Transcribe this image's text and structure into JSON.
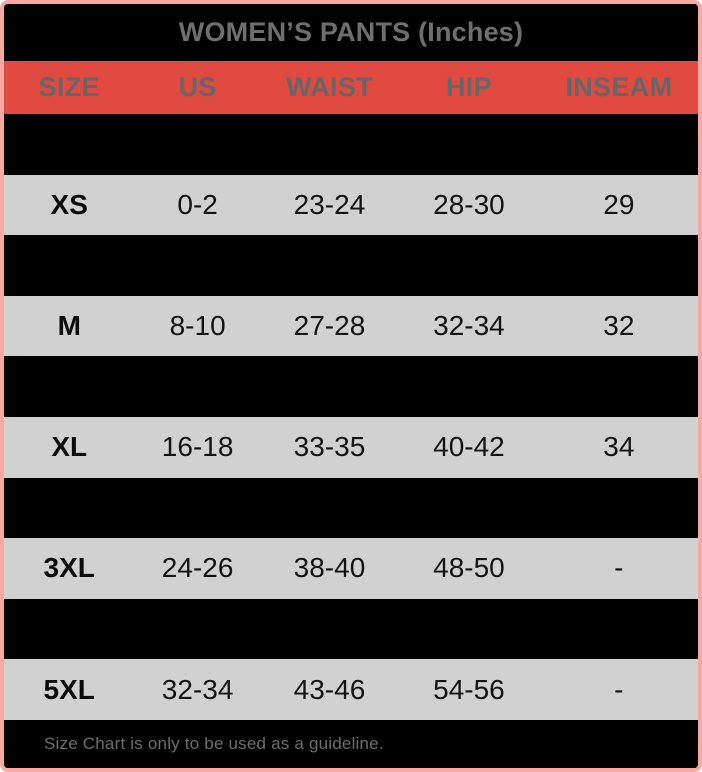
{
  "card": {
    "title": "WOMEN’S PANTS (Inches)",
    "footer_note": "Size Chart is only to be used as a guideline."
  },
  "table": {
    "columns": [
      "SIZE",
      "US",
      "WAIST",
      "HIP",
      "INSEAM"
    ],
    "rows": [
      {
        "size": "",
        "us": "",
        "waist": "",
        "hip": "",
        "inseam": "",
        "hidden": true
      },
      {
        "size": "XS",
        "us": "0-2",
        "waist": "23-24",
        "hip": "28-30",
        "inseam": "29",
        "hidden": false
      },
      {
        "size": "",
        "us": "",
        "waist": "",
        "hip": "",
        "inseam": "",
        "hidden": true
      },
      {
        "size": "M",
        "us": "8-10",
        "waist": "27-28",
        "hip": "32-34",
        "inseam": "32",
        "hidden": false
      },
      {
        "size": "",
        "us": "",
        "waist": "",
        "hip": "",
        "inseam": "",
        "hidden": true
      },
      {
        "size": "XL",
        "us": "16-18",
        "waist": "33-35",
        "hip": "40-42",
        "inseam": "34",
        "hidden": false
      },
      {
        "size": "",
        "us": "",
        "waist": "",
        "hip": "",
        "inseam": "",
        "hidden": true
      },
      {
        "size": "3XL",
        "us": "24-26",
        "waist": "38-40",
        "hip": "48-50",
        "inseam": "-",
        "hidden": false
      },
      {
        "size": "",
        "us": "",
        "waist": "",
        "hip": "",
        "inseam": "",
        "hidden": true
      },
      {
        "size": "5XL",
        "us": "32-34",
        "waist": "43-46",
        "hip": "54-56",
        "inseam": "-",
        "hidden": false
      }
    ]
  },
  "chart_data": {
    "type": "table",
    "title": "WOMEN’S PANTS (Inches)",
    "columns": [
      "SIZE",
      "US",
      "WAIST",
      "HIP",
      "INSEAM"
    ],
    "rows": [
      [
        "XS",
        "0-2",
        "23-24",
        "28-30",
        "29"
      ],
      [
        "M",
        "8-10",
        "27-28",
        "32-34",
        "32"
      ],
      [
        "XL",
        "16-18",
        "33-35",
        "40-42",
        "34"
      ],
      [
        "3XL",
        "24-26",
        "38-40",
        "48-50",
        "-"
      ],
      [
        "5XL",
        "32-34",
        "43-46",
        "54-56",
        "-"
      ]
    ],
    "note": "Size Chart is only to be used as a guideline.",
    "layout": {
      "alternating_rows": "black rows between each light data row",
      "header_position": "top"
    }
  },
  "colors": {
    "accent_red": "#e04a41",
    "row_light_gray": "#d1d1d1",
    "row_dark": "#000000",
    "border_pink": "#fba8a5",
    "title_text_gray": "#6f6f6f",
    "header_text_gray": "#63676a",
    "footer_text_gray": "#6d6d6d",
    "data_text": "#121212"
  }
}
